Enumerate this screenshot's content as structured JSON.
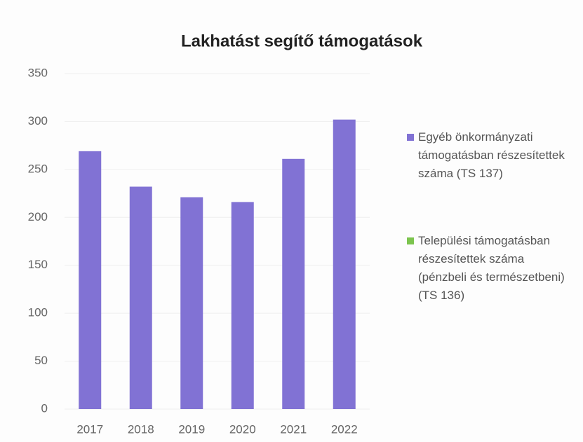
{
  "chart_data": {
    "type": "bar",
    "title": "Lakhatást segítő támogatások",
    "categories": [
      "2017",
      "2018",
      "2019",
      "2020",
      "2021",
      "2022"
    ],
    "series": [
      {
        "name": "Egyéb önkormányzati támogatásban részesítettek száma (TS 137)",
        "color": "#8172d4",
        "values": [
          269,
          232,
          221,
          216,
          261,
          302
        ]
      },
      {
        "name": "Települési támogatásban részesítettek száma (pénzbeli és természetbeni) (TS 136)",
        "color": "#7cc44e",
        "values": [
          null,
          null,
          null,
          null,
          null,
          null
        ]
      }
    ],
    "ylim": [
      0,
      350
    ],
    "yticks": [
      0,
      50,
      100,
      150,
      200,
      250,
      300,
      350
    ],
    "grid": true
  }
}
